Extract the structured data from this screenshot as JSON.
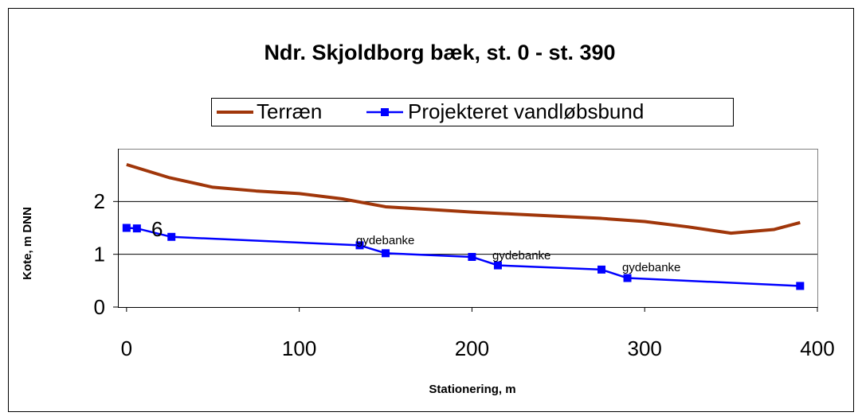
{
  "chart_data": {
    "type": "line",
    "title": "Ndr. Skjoldborg bæk, st. 0 - st. 390",
    "x_label": "Stationering, m",
    "y_label": "Kote, m DNN",
    "series": [
      {
        "name": "Terræn",
        "color": "#a0360a",
        "marker": false,
        "x": [
          0,
          25,
          50,
          75,
          100,
          125,
          150,
          175,
          200,
          225,
          250,
          275,
          300,
          325,
          350,
          375,
          390
        ],
        "values": [
          2.7,
          2.45,
          2.27,
          2.2,
          2.15,
          2.05,
          1.9,
          1.85,
          1.8,
          1.76,
          1.72,
          1.68,
          1.62,
          1.52,
          1.4,
          1.47,
          1.6
        ]
      },
      {
        "name": "Projekteret vandløbsbund",
        "color": "#0000ff",
        "marker": true,
        "x": [
          0,
          6,
          26,
          135,
          150,
          200,
          215,
          275,
          290,
          390
        ],
        "values": [
          1.5,
          1.49,
          1.33,
          1.17,
          1.02,
          0.95,
          0.79,
          0.71,
          0.55,
          0.4
        ]
      }
    ],
    "annotations": [
      "6",
      "gydebanke",
      "gydebanke",
      "gydebanke"
    ],
    "xlim": [
      -5,
      400
    ],
    "xticks": [
      0,
      100,
      200,
      300,
      400
    ],
    "ylim": [
      0,
      3
    ],
    "yticks": [
      0,
      1,
      2
    ],
    "grid": true,
    "legend": "top"
  }
}
